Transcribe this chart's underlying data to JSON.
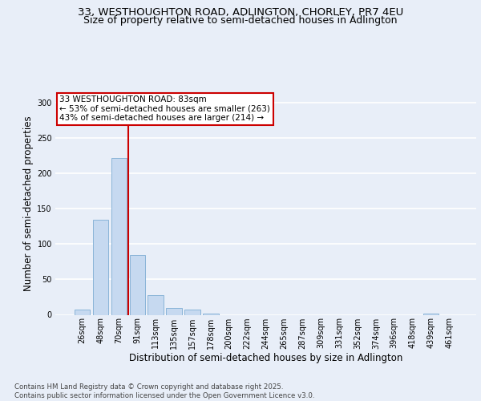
{
  "title_line1": "33, WESTHOUGHTON ROAD, ADLINGTON, CHORLEY, PR7 4EU",
  "title_line2": "Size of property relative to semi-detached houses in Adlington",
  "xlabel": "Distribution of semi-detached houses by size in Adlington",
  "ylabel": "Number of semi-detached properties",
  "footnote": "Contains HM Land Registry data © Crown copyright and database right 2025.\nContains public sector information licensed under the Open Government Licence v3.0.",
  "bar_labels": [
    "26sqm",
    "48sqm",
    "70sqm",
    "91sqm",
    "113sqm",
    "135sqm",
    "157sqm",
    "178sqm",
    "200sqm",
    "222sqm",
    "244sqm",
    "265sqm",
    "287sqm",
    "309sqm",
    "331sqm",
    "352sqm",
    "374sqm",
    "396sqm",
    "418sqm",
    "439sqm",
    "461sqm"
  ],
  "bar_values": [
    7,
    135,
    222,
    85,
    28,
    10,
    7,
    2,
    0,
    0,
    0,
    0,
    0,
    0,
    0,
    0,
    0,
    0,
    0,
    2,
    0
  ],
  "bar_color": "#c6d9f0",
  "bar_edge_color": "#8ab4d8",
  "property_label": "33 WESTHOUGHTON ROAD: 83sqm",
  "smaller_pct": 53,
  "smaller_count": 263,
  "larger_pct": 43,
  "larger_count": 214,
  "annotation_box_edge_color": "#cc0000",
  "vline_color": "#cc0000",
  "vline_x_bar_index": 2,
  "vline_x_offset": 0.5,
  "ylim": [
    0,
    315
  ],
  "yticks": [
    0,
    50,
    100,
    150,
    200,
    250,
    300
  ],
  "bg_color": "#e8eef8",
  "grid_color": "#ffffff",
  "title_fontsize": 9.5,
  "axis_label_fontsize": 8.5,
  "tick_fontsize": 7,
  "footnote_fontsize": 6.2,
  "annotation_fontsize": 7.5
}
